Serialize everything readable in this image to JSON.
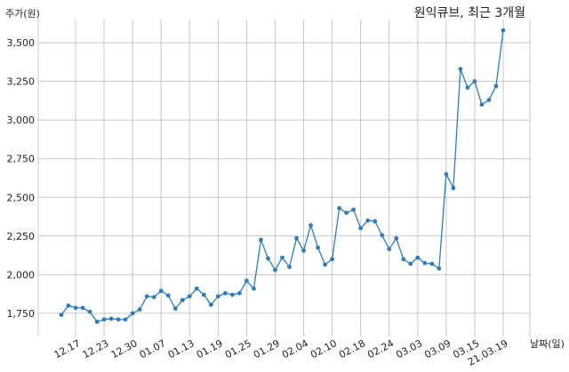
{
  "chart_data": {
    "type": "line",
    "title": "원익큐브, 최근 3개월",
    "ylabel": "주가(원)",
    "xlabel": "날짜(일)",
    "ylim": [
      1600,
      3650
    ],
    "yticks": [
      1750,
      2000,
      2250,
      2500,
      2750,
      3000,
      3250,
      3500
    ],
    "ytick_labels": [
      "1,750",
      "2,000",
      "2,250",
      "2,500",
      "2,750",
      "3,000",
      "3,250",
      "3,500"
    ],
    "xtick_labels": [
      "12.17",
      "12.23",
      "12.30",
      "01.07",
      "01.13",
      "01.19",
      "01.25",
      "01.29",
      "02.04",
      "02.10",
      "02.18",
      "02.24",
      "03.03",
      "03.09",
      "03.15",
      "21.03.19"
    ],
    "xtick_positions": [
      2,
      6,
      10,
      14,
      18,
      22,
      26,
      30,
      34,
      38,
      42,
      46,
      50,
      54,
      58,
      62
    ],
    "grid": true,
    "line_color": "#2f7db8",
    "series": [
      {
        "values": [
          1740,
          1800,
          1785,
          1785,
          1760,
          1695,
          1710,
          1715,
          1710,
          1710,
          1750,
          1775,
          1860,
          1855,
          1895,
          1865,
          1780,
          1835,
          1860,
          1910,
          1870,
          1805,
          1860,
          1880,
          1870,
          1880,
          1960,
          1910,
          2225,
          2105,
          2030,
          2110,
          2050,
          2235,
          2155,
          2320,
          2175,
          2065,
          2100,
          2430,
          2400,
          2420,
          2300,
          2350,
          2345,
          2255,
          2165,
          2235,
          2100,
          2070,
          2110,
          2075,
          2070,
          2040,
          2650,
          2560,
          3330,
          3210,
          3250,
          3100,
          3130,
          3220,
          3580
        ]
      }
    ]
  }
}
